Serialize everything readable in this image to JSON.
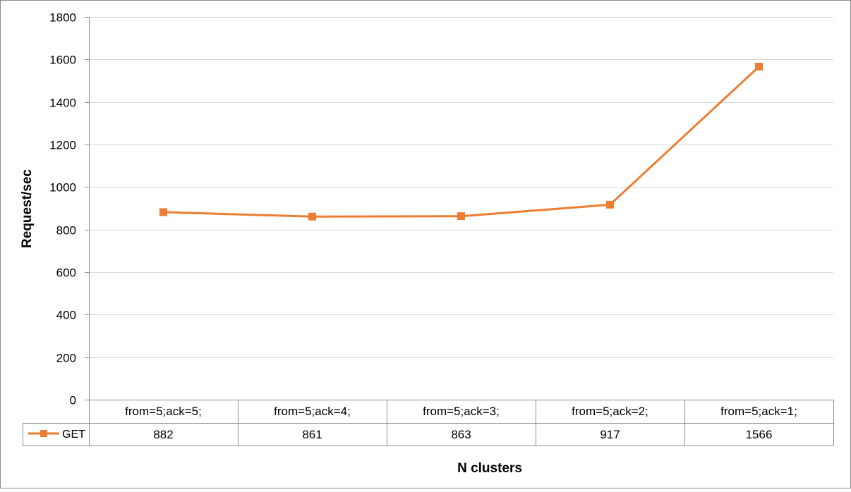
{
  "chart_data": {
    "type": "line",
    "title": "",
    "xlabel": "N clusters",
    "ylabel": "Request/sec",
    "ylim": [
      0,
      1800
    ],
    "yticks": [
      0,
      200,
      400,
      600,
      800,
      1000,
      1200,
      1400,
      1600,
      1800
    ],
    "grid": true,
    "categories": [
      "from=5;ack=5;",
      "from=5;ack=4;",
      "from=5;ack=3;",
      "from=5;ack=2;",
      "from=5;ack=1;"
    ],
    "series": [
      {
        "name": "GET",
        "values": [
          882,
          861,
          863,
          917,
          1566
        ],
        "color": "#ED7D31",
        "marker": "square"
      }
    ],
    "data_table": true
  }
}
